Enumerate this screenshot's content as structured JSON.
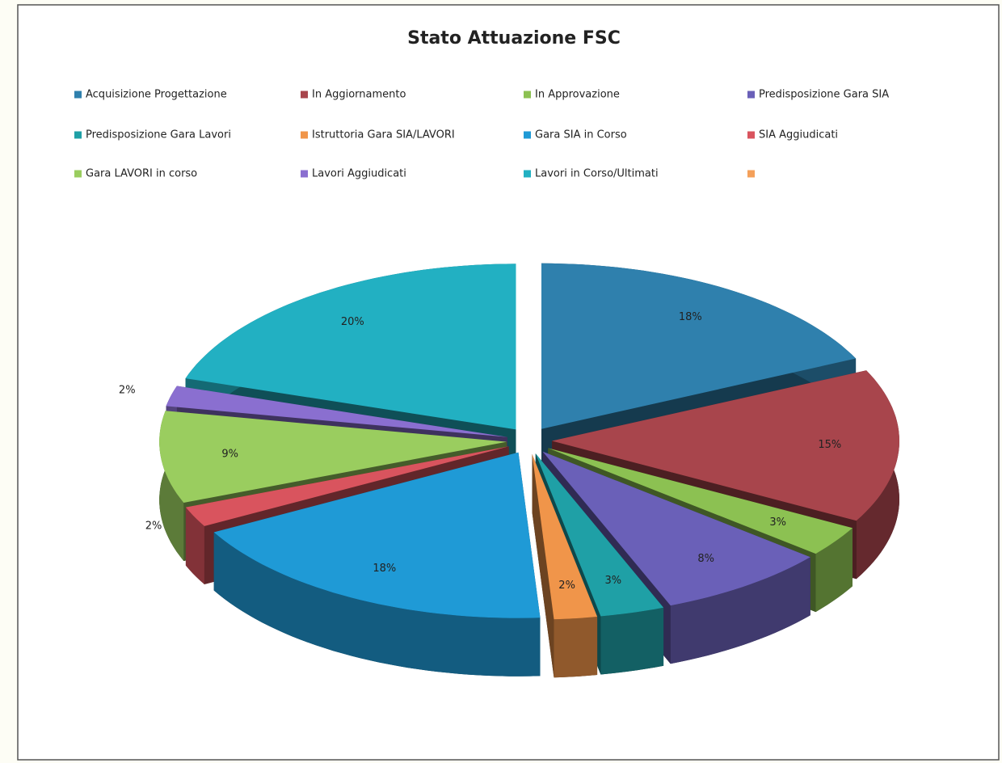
{
  "chart_data": {
    "type": "pie",
    "title": "Stato Attuazione FSC",
    "categories": [
      "Acquisizione Progettazione",
      "In Aggiornamento",
      "In Approvazione",
      "Predisposizione Gara SIA",
      "Predisposizione Gara Lavori",
      "Istruttoria Gara SIA/LAVORI",
      "Gara SIA in Corso",
      "SIA Aggiudicati",
      "Gara LAVORI in corso",
      "Lavori Aggiudicati",
      "Lavori in Corso/Ultimati",
      null
    ],
    "values": [
      18,
      15,
      3,
      8,
      3,
      2,
      18,
      2,
      9,
      2,
      20,
      0
    ],
    "value_labels": [
      "18%",
      "15%",
      "3%",
      "8%",
      "3%",
      "2%",
      "18%",
      "2%",
      "9%",
      "2%",
      "20%",
      null
    ],
    "colors": [
      "#2f80ad",
      "#a8454c",
      "#8cc152",
      "#6a60b8",
      "#1fa0a6",
      "#f0954a",
      "#1f9ad6",
      "#d9545e",
      "#9acd5f",
      "#8a6fd0",
      "#22b0c2",
      "#f4a05a"
    ],
    "legend": "top"
  }
}
